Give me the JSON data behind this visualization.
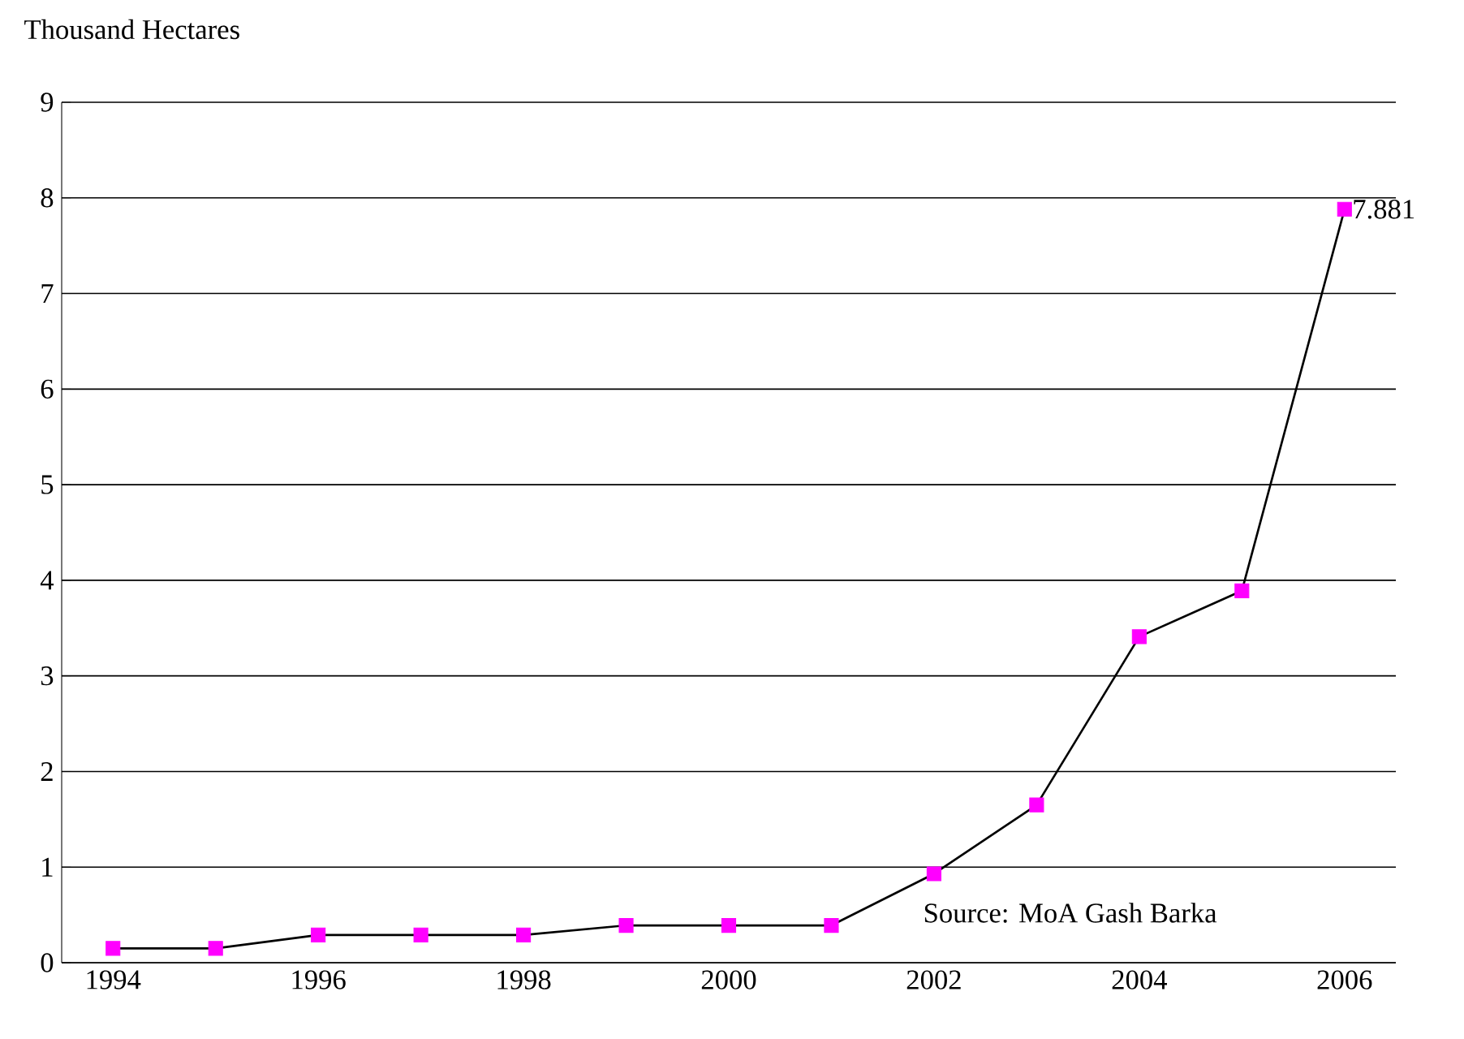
{
  "chart_data": {
    "type": "line",
    "ylabel": "Thousand Hectares",
    "categories": [
      "1994",
      null,
      "1996",
      null,
      "1998",
      null,
      "2000",
      null,
      "2002",
      null,
      "2004",
      null,
      "2006"
    ],
    "series": [
      {
        "color": "#000000",
        "colors": [
          "#ff00ff",
          "#ff00ff",
          "#ff00ff",
          "#ff00ff",
          "#ff00ff",
          "#ff00ff",
          "#ff00ff",
          "#ff00ff",
          "#ff00ff",
          "#ff00ff",
          "#ff00ff",
          "#ff00ff",
          "#ff00ff"
        ],
        "values": [
          0.15,
          0.15,
          0.29,
          0.29,
          0.29,
          0.39,
          0.39,
          0.39,
          0.93,
          1.65,
          3.41,
          3.89,
          7.881
        ],
        "value_labels": [
          null,
          null,
          null,
          null,
          null,
          null,
          null,
          null,
          null,
          null,
          null,
          null,
          "7.881"
        ]
      }
    ],
    "ylim": [
      0,
      9
    ],
    "yticks": [
      0,
      1,
      2,
      3,
      4,
      5,
      6,
      7,
      8,
      9
    ],
    "grid": "y",
    "marker": "square",
    "line_style": "solid",
    "annotations": [
      "Source: MoA Gash Barka"
    ]
  }
}
